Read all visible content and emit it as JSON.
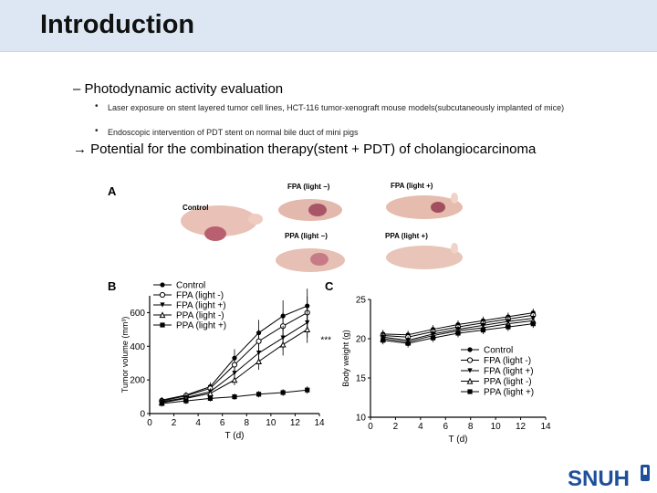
{
  "slide": {
    "title": "Introduction",
    "bullet": "–  Photodynamic activity evaluation",
    "subbullets": [
      "Laser exposure on stent layered tumor cell lines, HCT-116 tumor-xenograft mouse models(subcutaneously implanted of mice)",
      "Endoscopic intervention of PDT stent on normal bile duct of mini pigs"
    ],
    "conclusion": "→ Potential for the combination therapy(stent + PDT) of cholangiocarcinoma",
    "logo": "SNUH"
  },
  "figure": {
    "panel_a": {
      "letter": "A",
      "labels": [
        "Control",
        "FPA (light −)",
        "FPA (light +)",
        "PPA (light −)",
        "PPA (light +)"
      ]
    }
  },
  "chart_data": [
    {
      "type": "line",
      "panel": "B",
      "xlabel": "T (d)",
      "ylabel": "Tumor volume (mm³)",
      "x": [
        1,
        3,
        5,
        7,
        9,
        11,
        13
      ],
      "xticks": [
        0,
        2,
        4,
        6,
        8,
        10,
        12,
        14
      ],
      "yticks": [
        0,
        200,
        400,
        600
      ],
      "xlim": [
        0,
        14
      ],
      "ylim": [
        0,
        700
      ],
      "annotation": "***",
      "series": [
        {
          "name": "Control",
          "marker": "filled-circle",
          "values": [
            80,
            110,
            160,
            330,
            480,
            580,
            640
          ]
        },
        {
          "name": "FPA (light -)",
          "marker": "open-circle",
          "values": [
            75,
            105,
            150,
            290,
            430,
            520,
            600
          ]
        },
        {
          "name": "FPA (light +)",
          "marker": "filled-triangle",
          "values": [
            70,
            95,
            130,
            240,
            360,
            450,
            540
          ]
        },
        {
          "name": "PPA (light -)",
          "marker": "open-triangle",
          "values": [
            65,
            90,
            120,
            200,
            310,
            410,
            500
          ]
        },
        {
          "name": "PPA (light +)",
          "marker": "filled-square",
          "values": [
            60,
            75,
            90,
            100,
            115,
            125,
            140
          ]
        }
      ]
    },
    {
      "type": "line",
      "panel": "C",
      "xlabel": "T (d)",
      "ylabel": "Body weight (g)",
      "x": [
        1,
        3,
        5,
        7,
        9,
        11,
        13
      ],
      "xticks": [
        0,
        2,
        4,
        6,
        8,
        10,
        12,
        14
      ],
      "yticks": [
        10,
        15,
        20,
        25
      ],
      "xlim": [
        0,
        14
      ],
      "ylim": [
        10,
        25
      ],
      "series": [
        {
          "name": "Control",
          "marker": "filled-circle",
          "values": [
            20.6,
            20.5,
            21.2,
            21.8,
            22.3,
            22.8,
            23.3
          ]
        },
        {
          "name": "FPA (light -)",
          "marker": "open-circle",
          "values": [
            20.4,
            20.2,
            20.9,
            21.5,
            22.0,
            22.5,
            23.0
          ]
        },
        {
          "name": "FPA (light +)",
          "marker": "filled-triangle",
          "values": [
            20.2,
            19.8,
            20.6,
            21.2,
            21.7,
            22.2,
            22.6
          ]
        },
        {
          "name": "PPA (light -)",
          "marker": "open-triangle",
          "values": [
            20.0,
            19.6,
            20.4,
            21.0,
            21.4,
            21.9,
            22.3
          ]
        },
        {
          "name": "PPA (light +)",
          "marker": "filled-square",
          "values": [
            19.8,
            19.4,
            20.1,
            20.7,
            21.1,
            21.5,
            21.9
          ]
        }
      ]
    }
  ]
}
